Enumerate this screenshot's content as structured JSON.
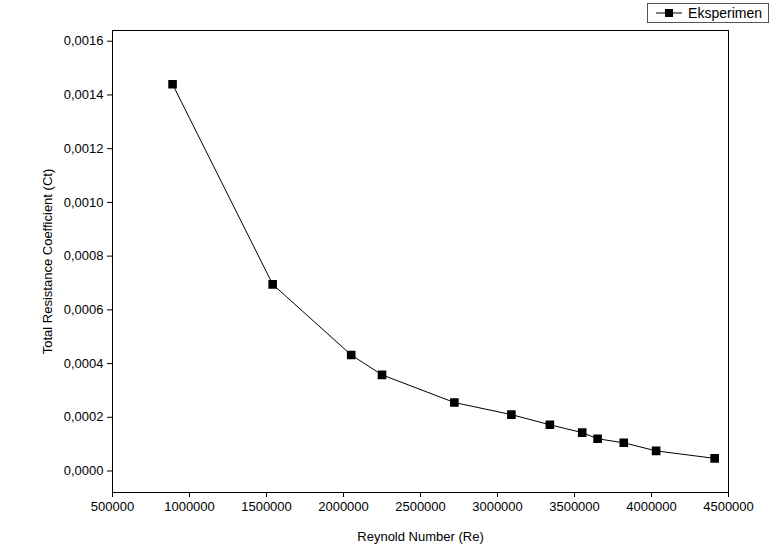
{
  "chart_data": {
    "type": "line",
    "x_label": "Reynold Number (Re)",
    "y_label": "Total Resistance Coefficient (Ct)",
    "x": [
      890000,
      1540000,
      2050000,
      2250000,
      2720000,
      3090000,
      3340000,
      3550000,
      3650000,
      3820000,
      4030000,
      4410000
    ],
    "series": [
      {
        "name": "Eksperimen",
        "color": "#000000",
        "marker": "square",
        "line_style": "solid",
        "values": [
          0.00144,
          0.000695,
          0.000432,
          0.000358,
          0.000255,
          0.00021,
          0.000172,
          0.000143,
          0.00012,
          0.000105,
          7.5e-05,
          4.7e-05
        ]
      }
    ],
    "xlim": [
      500000,
      4500000
    ],
    "xticks": [
      500000,
      1000000,
      1500000,
      2000000,
      2500000,
      3000000,
      3500000,
      4000000,
      4500000
    ],
    "ylim": [
      -8e-05,
      0.00164
    ],
    "yticks": [
      {
        "value": 0,
        "label": "0,0000"
      },
      {
        "value": 0.0002,
        "label": "0,0002"
      },
      {
        "value": 0.0004,
        "label": "0,0004"
      },
      {
        "value": 0.0006,
        "label": "0,0006"
      },
      {
        "value": 0.0008,
        "label": "0,0008"
      },
      {
        "value": 0.001,
        "label": "0,0010"
      },
      {
        "value": 0.0012,
        "label": "0,0012"
      },
      {
        "value": 0.0014,
        "label": "0,0014"
      },
      {
        "value": 0.0016,
        "label": "0,0016"
      }
    ],
    "grid": false,
    "legend": "top-right"
  }
}
